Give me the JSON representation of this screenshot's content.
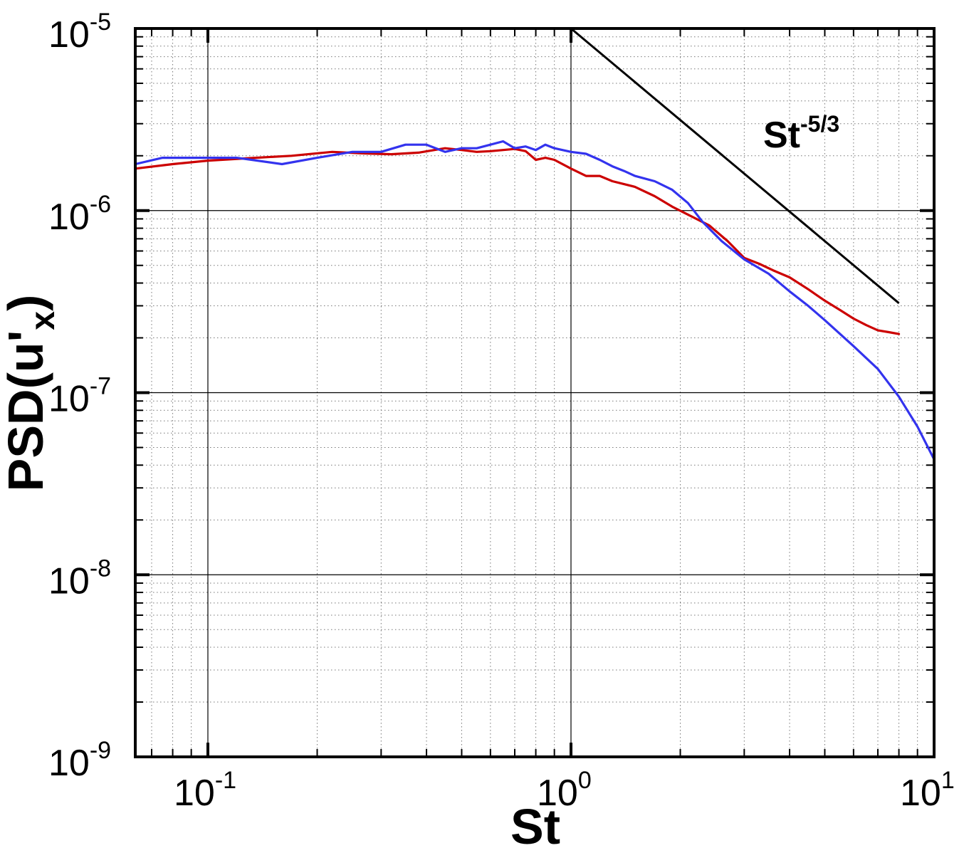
{
  "chart_data": {
    "type": "line",
    "xlabel": "St",
    "ylabel_main": "PSD(u'",
    "ylabel_sub": "x",
    "ylabel_close": ")",
    "xscale": "log",
    "yscale": "log",
    "xlim": [
      0.0631,
      10
    ],
    "ylim": [
      1e-09,
      1e-05
    ],
    "grid": true,
    "x_ticks": [
      {
        "value": 0.1,
        "base": "10",
        "exp": "-1"
      },
      {
        "value": 1,
        "base": "10",
        "exp": "0"
      },
      {
        "value": 10,
        "base": "10",
        "exp": "1"
      }
    ],
    "y_ticks": [
      {
        "value": 1e-09,
        "base": "10",
        "exp": "-9"
      },
      {
        "value": 1e-08,
        "base": "10",
        "exp": "-8"
      },
      {
        "value": 1e-07,
        "base": "10",
        "exp": "-7"
      },
      {
        "value": 1e-06,
        "base": "10",
        "exp": "-6"
      },
      {
        "value": 1e-05,
        "base": "10",
        "exp": "-5"
      }
    ],
    "series": [
      {
        "color": "#cc0000",
        "x": [
          0.063,
          0.08,
          0.1,
          0.13,
          0.17,
          0.22,
          0.27,
          0.32,
          0.38,
          0.45,
          0.5,
          0.55,
          0.6,
          0.65,
          0.7,
          0.75,
          0.8,
          0.85,
          0.9,
          1.0,
          1.1,
          1.2,
          1.3,
          1.5,
          1.7,
          1.9,
          2.1,
          2.4,
          2.7,
          3.0,
          3.3,
          3.6,
          4.0,
          4.5,
          5.0,
          5.5,
          6.0,
          6.5,
          7.0,
          7.5,
          8.0
        ],
        "y": [
          1.7e-06,
          1.8e-06,
          1.88e-06,
          1.94e-06,
          2e-06,
          2.1e-06,
          2.06e-06,
          2.04e-06,
          2.08e-06,
          2.2e-06,
          2.15e-06,
          2.1e-06,
          2.12e-06,
          2.15e-06,
          2.18e-06,
          2.12e-06,
          1.9e-06,
          1.95e-06,
          1.9e-06,
          1.7e-06,
          1.55e-06,
          1.55e-06,
          1.45e-06,
          1.35e-06,
          1.2e-06,
          1.05e-06,
          9.5e-07,
          8.3e-07,
          6.8e-07,
          5.5e-07,
          5.1e-07,
          4.7e-07,
          4.3e-07,
          3.7e-07,
          3.2e-07,
          2.85e-07,
          2.55e-07,
          2.35e-07,
          2.2e-07,
          2.15e-07,
          2.1e-07
        ]
      },
      {
        "color": "#3333ee",
        "x": [
          0.063,
          0.075,
          0.09,
          0.12,
          0.16,
          0.2,
          0.25,
          0.3,
          0.35,
          0.4,
          0.45,
          0.5,
          0.55,
          0.6,
          0.65,
          0.7,
          0.75,
          0.8,
          0.85,
          0.9,
          1.0,
          1.1,
          1.2,
          1.3,
          1.4,
          1.5,
          1.7,
          1.9,
          2.1,
          2.3,
          2.6,
          3.0,
          3.5,
          4.0,
          4.5,
          5.0,
          6.0,
          7.0,
          8.0,
          9.0,
          10.0
        ],
        "y": [
          1.8e-06,
          1.95e-06,
          1.95e-06,
          1.95e-06,
          1.8e-06,
          1.95e-06,
          2.1e-06,
          2.1e-06,
          2.3e-06,
          2.3e-06,
          2.1e-06,
          2.2e-06,
          2.2e-06,
          2.3e-06,
          2.4e-06,
          2.2e-06,
          2.25e-06,
          2.15e-06,
          2.3e-06,
          2.2e-06,
          2.1e-06,
          2.05e-06,
          1.9e-06,
          1.75e-06,
          1.65e-06,
          1.55e-06,
          1.45e-06,
          1.3e-06,
          1.1e-06,
          8.7e-07,
          6.8e-07,
          5.4e-07,
          4.5e-07,
          3.6e-07,
          3e-07,
          2.5e-07,
          1.8e-07,
          1.35e-07,
          9.5e-08,
          6.5e-08,
          4.3e-08
        ]
      }
    ],
    "reference_line": {
      "label_base": "St",
      "label_exp": "-5/3",
      "color": "#000000",
      "x": [
        1,
        8
      ],
      "y": [
        1e-05,
        3.1e-07
      ]
    }
  }
}
